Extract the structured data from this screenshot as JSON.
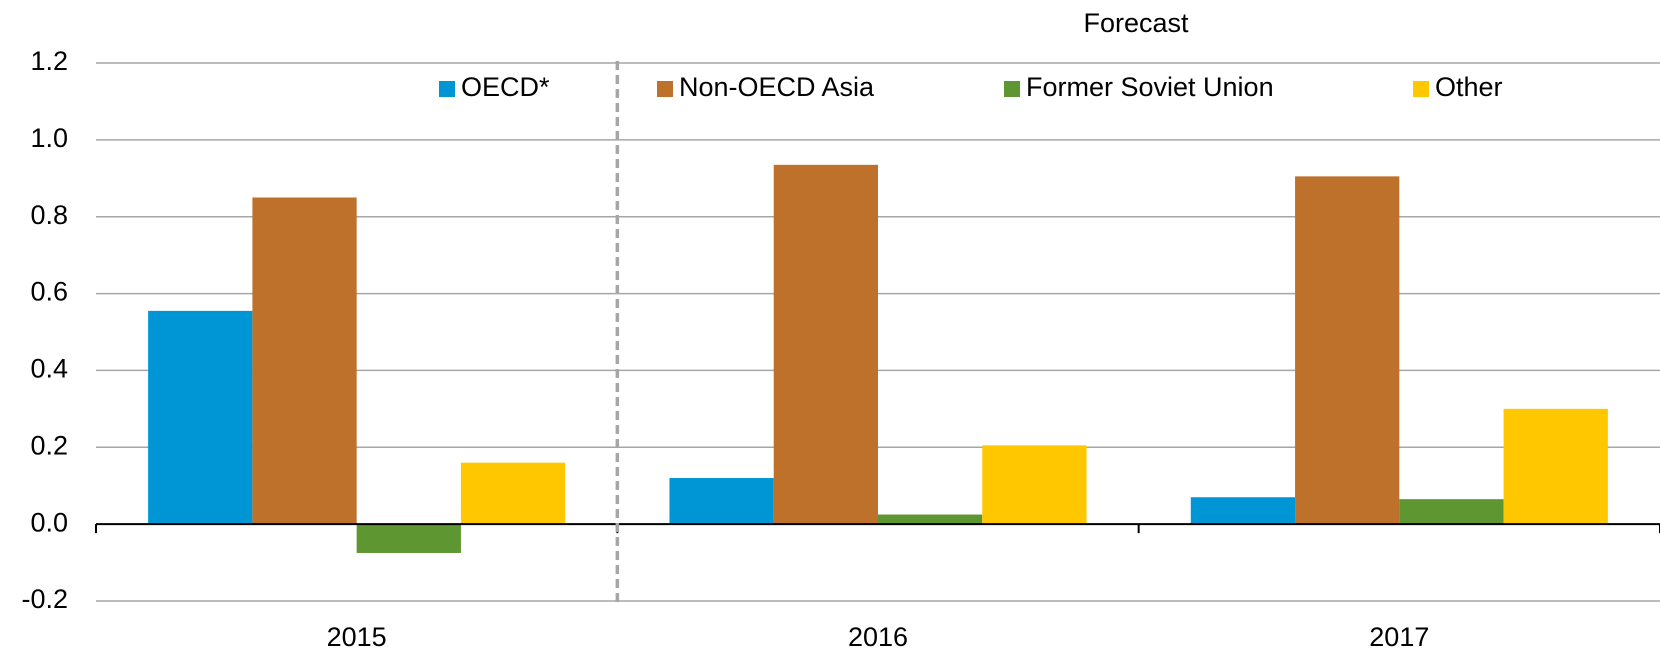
{
  "chart_data": {
    "type": "bar",
    "annotation": "Forecast",
    "categories": [
      "2015",
      "2016",
      "2017"
    ],
    "series": [
      {
        "name": "OECD*",
        "color": "#0096d6",
        "values": [
          0.555,
          0.12,
          0.07
        ]
      },
      {
        "name": "Non-OECD Asia",
        "color": "#bd712b",
        "values": [
          0.85,
          0.935,
          0.905
        ]
      },
      {
        "name": "Former Soviet Union",
        "color": "#5e9732",
        "values": [
          -0.075,
          0.025,
          0.065
        ]
      },
      {
        "name": "Other",
        "color": "#ffc700",
        "values": [
          0.16,
          0.205,
          0.3
        ]
      }
    ],
    "ylim": [
      -0.2,
      1.2
    ],
    "yticks": [
      -0.2,
      {
        "value": 0,
        "label": "0.0"
      },
      0.2,
      0.4,
      0.6,
      0.8,
      {
        "value": 1,
        "label": "1.0"
      },
      1.2
    ],
    "grid": true,
    "legend": "top"
  }
}
